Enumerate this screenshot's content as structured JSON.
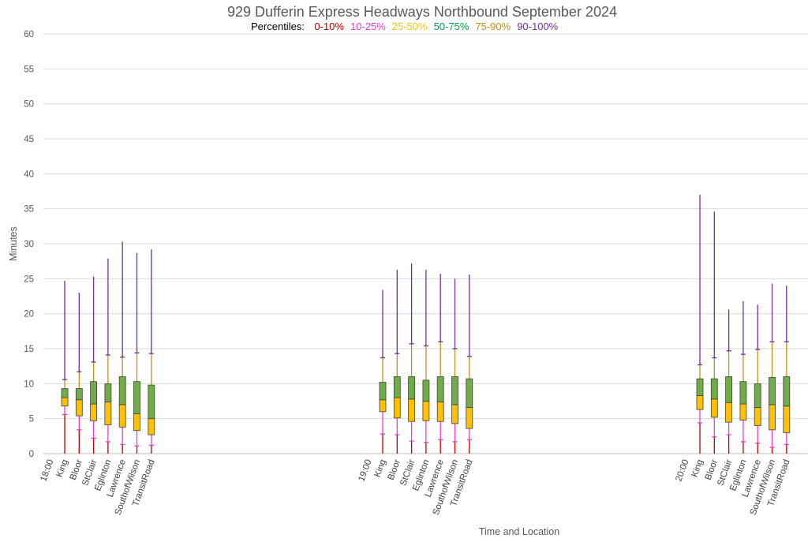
{
  "chart_data": {
    "type": "box",
    "title": "929 Dufferin Express Headways Northbound September 2024",
    "percentile_label": "Percentiles:",
    "percentile_bands": [
      {
        "label": "0-10%",
        "color": "#c00000"
      },
      {
        "label": "10-25%",
        "color": "#e83ecf"
      },
      {
        "label": "25-50%",
        "color": "#f5c518"
      },
      {
        "label": "50-75%",
        "color": "#00a050"
      },
      {
        "label": "75-90%",
        "color": "#c8901a"
      },
      {
        "label": "90-100%",
        "color": "#7030a0"
      }
    ],
    "box_colors": {
      "lower_box": "#ffc000",
      "upper_box": "#70ad47",
      "box_outline": "#404040"
    },
    "ylabel": "Minutes",
    "xlabel": "Time and Location",
    "ylim": [
      0,
      60
    ],
    "yticks": [
      0,
      5,
      10,
      15,
      20,
      25,
      30,
      35,
      40,
      45,
      50,
      55,
      60
    ],
    "grid": true,
    "groups": [
      {
        "time": "18:00",
        "stops": [
          {
            "name": "King",
            "min": 0,
            "p10": 5.6,
            "p25": 6.8,
            "p50": 8.0,
            "p75": 9.3,
            "p90": 10.6,
            "max": 24.7
          },
          {
            "name": "Bloor",
            "min": 0,
            "p10": 3.4,
            "p25": 5.4,
            "p50": 7.7,
            "p75": 9.3,
            "p90": 11.7,
            "max": 23.0
          },
          {
            "name": "StClair",
            "min": 0,
            "p10": 2.2,
            "p25": 4.7,
            "p50": 7.1,
            "p75": 10.3,
            "p90": 13.1,
            "max": 25.3
          },
          {
            "name": "Eglinton",
            "min": 0,
            "p10": 1.7,
            "p25": 4.1,
            "p50": 7.4,
            "p75": 10.0,
            "p90": 14.1,
            "max": 27.9
          },
          {
            "name": "Lawrence",
            "min": 0,
            "p10": 1.3,
            "p25": 3.8,
            "p50": 7.0,
            "p75": 11.0,
            "p90": 13.8,
            "max": 30.3
          },
          {
            "name": "SouthofWilson",
            "min": 0,
            "p10": 1.1,
            "p25": 3.3,
            "p50": 5.7,
            "p75": 10.3,
            "p90": 14.4,
            "max": 28.7
          },
          {
            "name": "TransitRoad",
            "min": 0,
            "p10": 1.2,
            "p25": 2.7,
            "p50": 5.0,
            "p75": 9.8,
            "p90": 14.3,
            "max": 29.2
          }
        ]
      },
      {
        "time": "19:00",
        "stops": [
          {
            "name": "King",
            "min": 0,
            "p10": 2.8,
            "p25": 6.0,
            "p50": 7.7,
            "p75": 10.2,
            "p90": 13.7,
            "max": 23.4
          },
          {
            "name": "Bloor",
            "min": 0,
            "p10": 2.7,
            "p25": 5.1,
            "p50": 8.0,
            "p75": 11.0,
            "p90": 14.3,
            "max": 26.3
          },
          {
            "name": "StClair",
            "min": 0,
            "p10": 1.8,
            "p25": 4.6,
            "p50": 7.8,
            "p75": 11.0,
            "p90": 15.7,
            "max": 27.2
          },
          {
            "name": "Eglinton",
            "min": 0,
            "p10": 1.6,
            "p25": 4.7,
            "p50": 7.5,
            "p75": 10.5,
            "p90": 15.4,
            "max": 26.3
          },
          {
            "name": "Lawrence",
            "min": 0,
            "p10": 2.0,
            "p25": 4.6,
            "p50": 7.4,
            "p75": 11.0,
            "p90": 16.0,
            "max": 25.7
          },
          {
            "name": "SouthofWilson",
            "min": 0,
            "p10": 1.7,
            "p25": 4.3,
            "p50": 7.0,
            "p75": 11.0,
            "p90": 15.0,
            "max": 25.0
          },
          {
            "name": "TransitRoad",
            "min": 0,
            "p10": 2.0,
            "p25": 3.6,
            "p50": 6.6,
            "p75": 10.7,
            "p90": 13.9,
            "max": 25.6
          }
        ]
      },
      {
        "time": "20:00",
        "stops": [
          {
            "name": "King",
            "min": 0,
            "p10": 4.4,
            "p25": 6.3,
            "p50": 8.3,
            "p75": 10.7,
            "p90": 12.7,
            "max": 37.0
          },
          {
            "name": "Bloor",
            "min": 0,
            "p10": 2.4,
            "p25": 5.2,
            "p50": 7.8,
            "p75": 10.7,
            "p90": 13.7,
            "max": 34.6
          },
          {
            "name": "StClair",
            "min": 0,
            "p10": 2.7,
            "p25": 4.5,
            "p50": 7.3,
            "p75": 11.0,
            "p90": 14.7,
            "max": 20.6
          },
          {
            "name": "Eglinton",
            "min": 0,
            "p10": 1.7,
            "p25": 4.8,
            "p50": 7.1,
            "p75": 10.3,
            "p90": 14.2,
            "max": 21.8
          },
          {
            "name": "Lawrence",
            "min": 0,
            "p10": 1.5,
            "p25": 4.0,
            "p50": 6.6,
            "p75": 10.0,
            "p90": 14.9,
            "max": 21.3
          },
          {
            "name": "SouthofWilson",
            "min": 0,
            "p10": 0.9,
            "p25": 3.4,
            "p50": 7.0,
            "p75": 10.9,
            "p90": 16.0,
            "max": 24.3
          },
          {
            "name": "TransitRoad",
            "min": 0,
            "p10": 1.3,
            "p25": 3.0,
            "p50": 6.8,
            "p75": 11.0,
            "p90": 16.0,
            "max": 24.0
          }
        ]
      }
    ]
  }
}
